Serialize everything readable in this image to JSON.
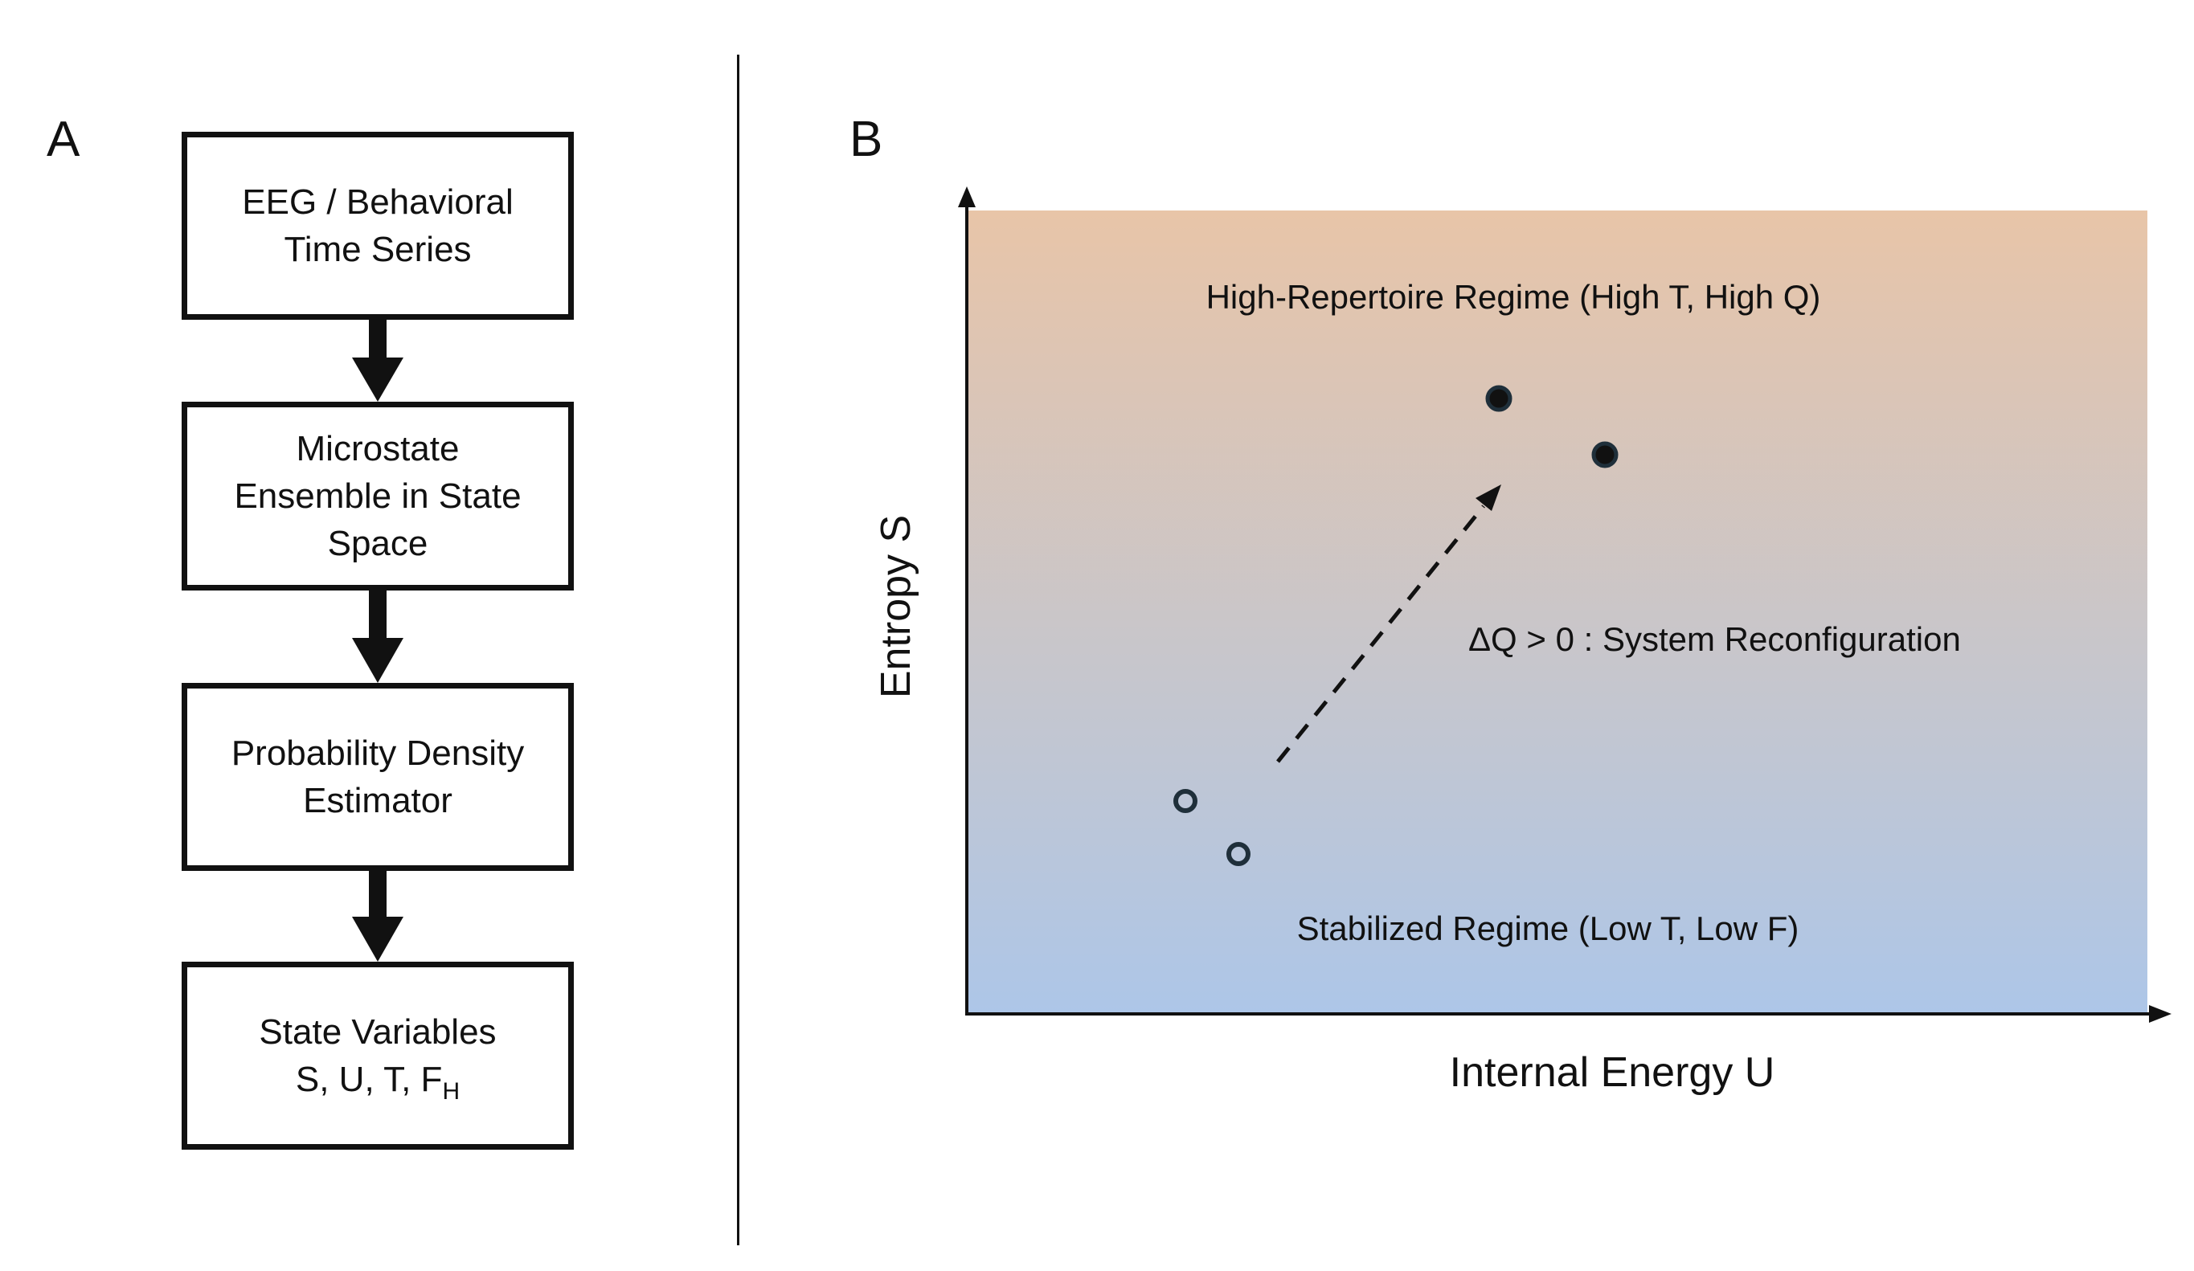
{
  "panels": {
    "a": {
      "letter": "A"
    },
    "b": {
      "letter": "B"
    }
  },
  "flowchart": {
    "boxes": [
      {
        "line1": "EEG / Behavioral",
        "line2": "Time Series"
      },
      {
        "line1": "Microstate",
        "line2": "Ensemble in State",
        "line3": "Space"
      },
      {
        "line1": "Probability Density",
        "line2": "Estimator"
      },
      {
        "line1": "State Variables",
        "line2_main": "S, U, T, F",
        "line2_sub": "H"
      }
    ]
  },
  "phase_diagram": {
    "x_label": "Internal Energy U",
    "y_label": "Entropy S",
    "top_region_label": "High-Repertoire Regime (High T, High Q)",
    "bottom_region_label": "Stabilized Regime (Low T, Low F)",
    "transition_label": "ΔQ > 0 : System Reconfiguration",
    "colors": {
      "top_gradient": "#e8c5a8",
      "bottom_gradient": "#adc6e8",
      "ink": "#111111",
      "point_outline": "#1f2f3a"
    }
  }
}
